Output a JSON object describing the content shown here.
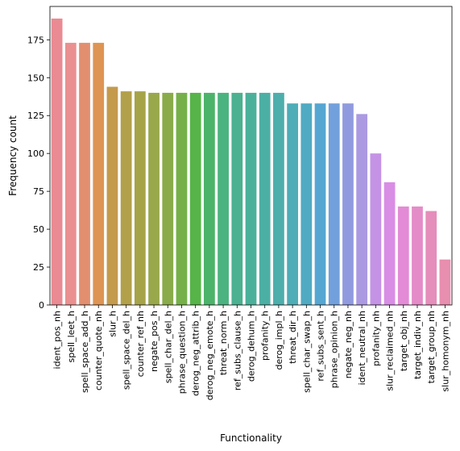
{
  "chart_data": {
    "type": "bar",
    "xlabel": "Functionality",
    "ylabel": "Frequency count",
    "ylim": [
      0,
      197
    ],
    "yticks": [
      0,
      25,
      50,
      75,
      100,
      125,
      150,
      175
    ],
    "grid": false,
    "categories": [
      "ident_pos_nh",
      "spell_leet_h",
      "spell_space_add_h",
      "counter_quote_nh",
      "slur_h",
      "spell_space_del_h",
      "counter_ref_nh",
      "negate_pos_h",
      "spell_char_del_h",
      "phrase_question_h",
      "derog_neg_attrib_h",
      "derog_neg_emote_h",
      "threat_norm_h",
      "ref_subs_clause_h",
      "derog_dehum_h",
      "profanity_h",
      "derog_impl_h",
      "threat_dir_h",
      "spell_char_swap_h",
      "ref_subs_sent_h",
      "phrase_opinion_h",
      "negate_neg_nh",
      "ident_neutral_nh",
      "profanity_nh",
      "slur_reclaimed_nh",
      "target_obj_nh",
      "target_indiv_nh",
      "target_group_nh",
      "slur_homonym_nh"
    ],
    "values": [
      189,
      173,
      173,
      173,
      144,
      141,
      141,
      140,
      140,
      140,
      140,
      140,
      140,
      140,
      140,
      140,
      140,
      133,
      133,
      133,
      133,
      133,
      126,
      100,
      81,
      65,
      65,
      62,
      30
    ],
    "colors": [
      "#ea8a92",
      "#ea9090",
      "#e28f70",
      "#de9453",
      "#c49a4d",
      "#b3a04a",
      "#a6a449",
      "#99a84b",
      "#8aab4a",
      "#76b04a",
      "#56b448",
      "#4cb36a",
      "#4bb380",
      "#4bb190",
      "#4bb09a",
      "#4cafa4",
      "#4daeac",
      "#4eadb6",
      "#50aac2",
      "#56a6d2",
      "#72a0dc",
      "#909bdf",
      "#ab9ae2",
      "#c493e5",
      "#d98de5",
      "#e38bd6",
      "#e48cc8",
      "#e58dbb",
      "#e88eaf"
    ]
  }
}
